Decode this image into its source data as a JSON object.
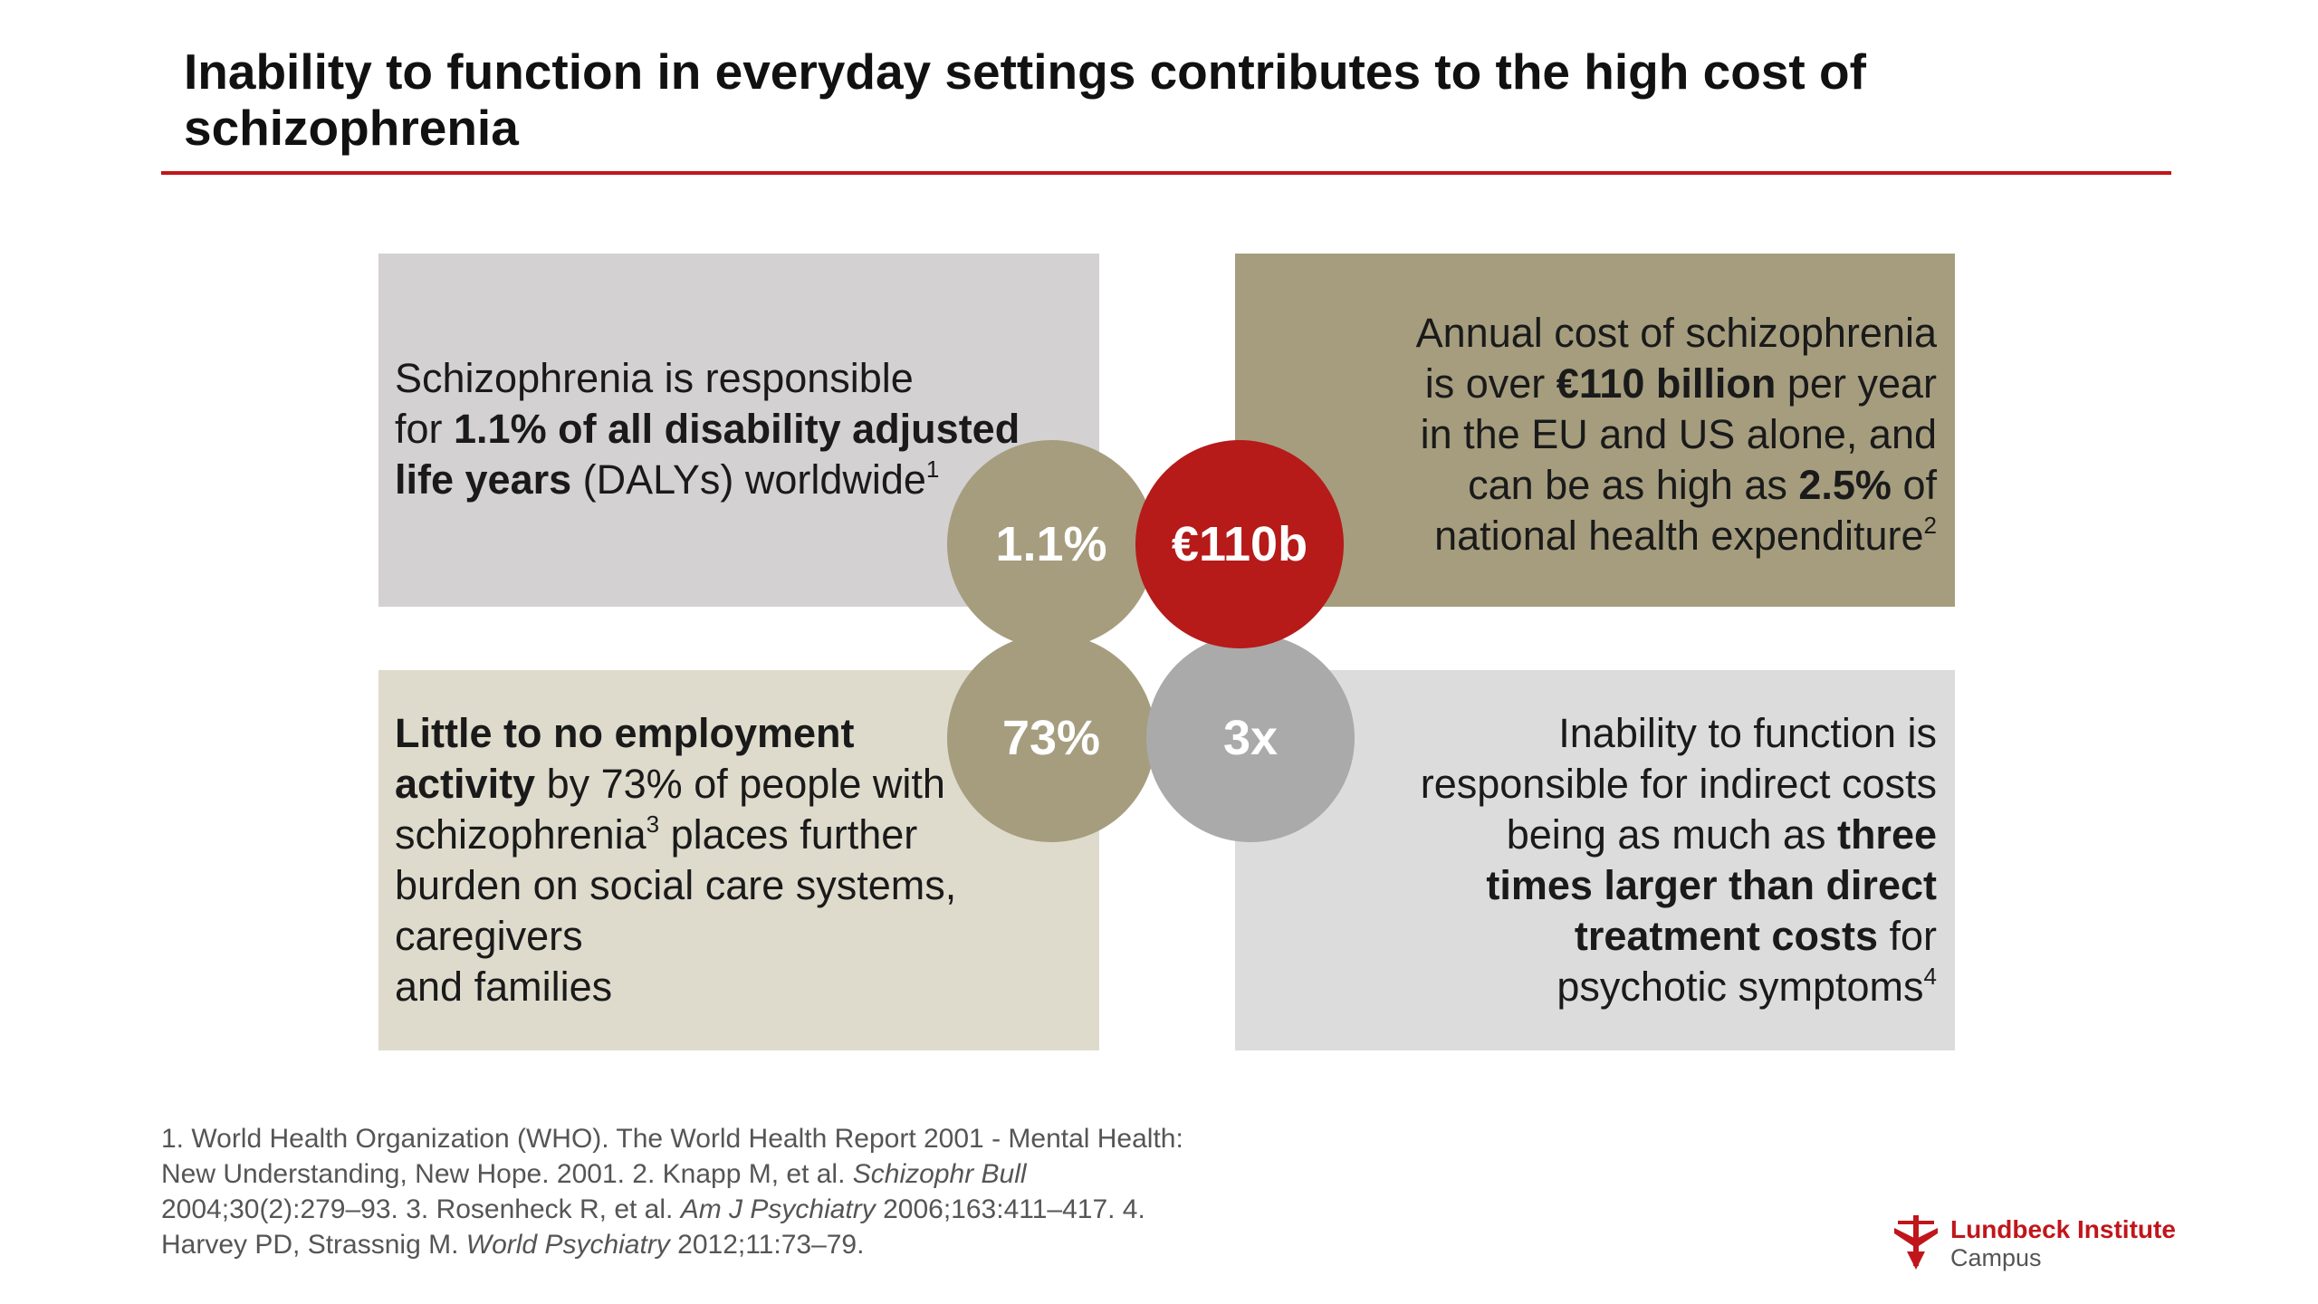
{
  "header": {
    "title_line1": "Inability to function in everyday settings contributes to the high cost of",
    "title_line2": "schizophrenia"
  },
  "quadrants": {
    "top_left": {
      "l1": "Schizophrenia is responsible",
      "l2_pre": "for ",
      "l2_bold": "1.1% of all disability adjusted",
      "l3_bold": "life years",
      "l3_post": " (DALYs) worldwide",
      "ref": "1"
    },
    "top_right": {
      "l1": "Annual cost of schizophrenia",
      "l2_pre": "is over ",
      "l2_bold": "€110 billion",
      "l2_post": " per year",
      "l3": "in the EU and US alone, and",
      "l4_pre": "can be as high as ",
      "l4_bold": "2.5%",
      "l4_post": " of",
      "l5": "national health expenditure",
      "ref": "2"
    },
    "bottom_left": {
      "l1_bold": "Little to no employment",
      "l2_bold": "activity",
      "l2_post": " by 73% of people with",
      "l3_pre": "schizophrenia",
      "ref": "3",
      "l3_post": " places further",
      "l4": "burden on social care systems,",
      "l5": "caregivers",
      "l6": "and families"
    },
    "bottom_right": {
      "l1": "Inability to function is",
      "l2": "responsible for indirect costs",
      "l3_pre": "being as much as ",
      "l3_bold": "three",
      "l4_bold": "times larger than direct",
      "l5_bold": "treatment costs",
      "l5_post": " for",
      "l6": "psychotic symptoms",
      "ref": "4"
    }
  },
  "circles": {
    "daly": "1.1%",
    "cost": "€110b",
    "employment": "73%",
    "indirect": "3x"
  },
  "footnote": {
    "t1": "1. World Health Organization (WHO). The World Health Report 2001 - Mental Health: New Understanding, New Hope. 2001. 2. Knapp M, et al. ",
    "j1": "Schizophr Bull",
    "t2": " 2004;30(2):279–93. 3. Rosenheck R, et al. ",
    "j2": "Am J Psychiatry",
    "t3": " 2006;163:411–417. 4. Harvey PD, Strassnig M. ",
    "j3": "World Psychiatry",
    "t4": " 2012;11:73–79."
  },
  "logo": {
    "name": "Lundbeck Institute",
    "sub": "Campus",
    "icon": "lundbeck-mark-icon"
  },
  "colors": {
    "accent_red": "#c0161b",
    "olive": "#a59d7e",
    "grey_box": "#d3d1d2",
    "light_olive_box": "#dedbcc",
    "light_grey_box": "#dcdcdc",
    "circle_grey": "#aaaaaa",
    "circle_red": "#b61a19"
  }
}
